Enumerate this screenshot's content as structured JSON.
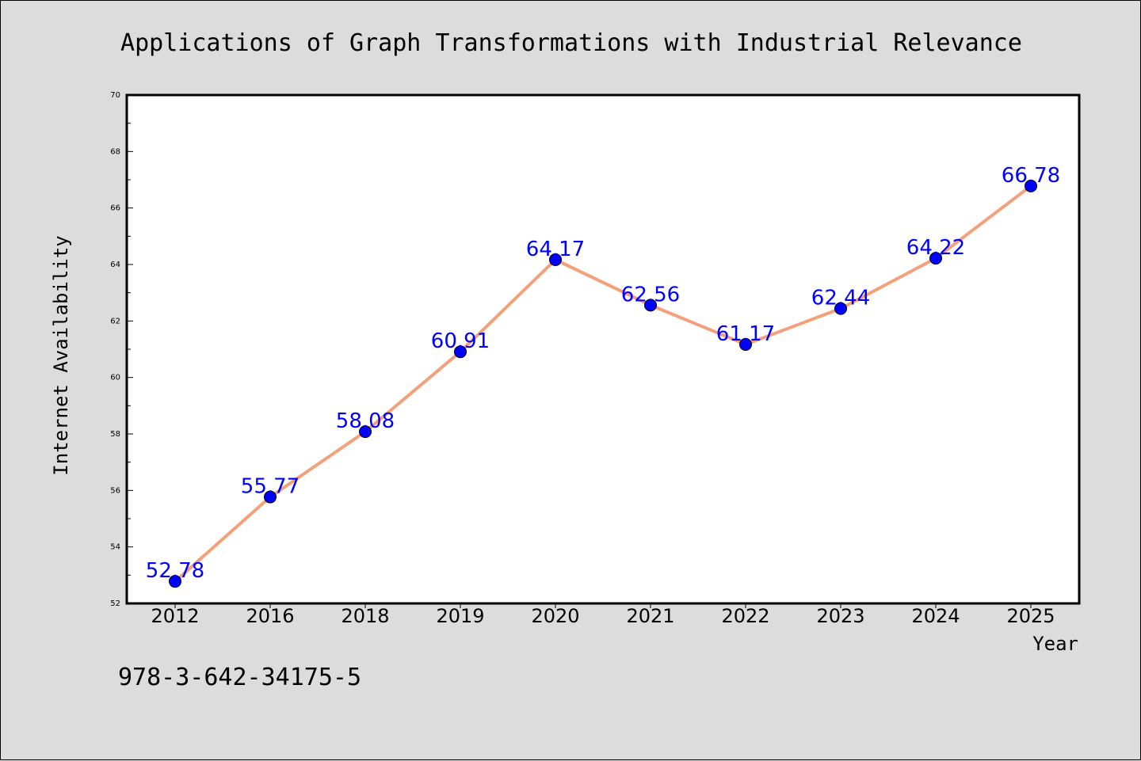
{
  "chart_data": {
    "type": "line",
    "title": "Applications of Graph Transformations with Industrial Relevance",
    "xlabel": "Year",
    "ylabel": "Internet Availability",
    "categories": [
      "2012",
      "2016",
      "2018",
      "2019",
      "2020",
      "2021",
      "2022",
      "2023",
      "2024",
      "2025"
    ],
    "values": [
      52.78,
      55.77,
      58.08,
      60.91,
      64.17,
      62.56,
      61.17,
      62.44,
      64.22,
      66.78
    ],
    "data_labels": [
      "52.78",
      "55.77",
      "58.08",
      "60.91",
      "64.17",
      "62.56",
      "61.17",
      "62.44",
      "64.22",
      "66.78"
    ],
    "ylim": [
      52,
      70
    ],
    "y_ticks": [
      52,
      54,
      56,
      58,
      60,
      62,
      64,
      66,
      68,
      70
    ],
    "y_tick_labels": [
      "52",
      "54",
      "56",
      "58",
      "60",
      "62",
      "64",
      "66",
      "68",
      "70"
    ],
    "grid": false,
    "legend": "none",
    "line_color": "#f4a07a",
    "marker_color": "#0000ff",
    "label_color": "#0000ff"
  },
  "footer": {
    "identifier": "978-3-642-34175-5"
  },
  "colors": {
    "background": "#dcdcdc",
    "plot_background": "#ffffff",
    "axis": "#000000"
  }
}
